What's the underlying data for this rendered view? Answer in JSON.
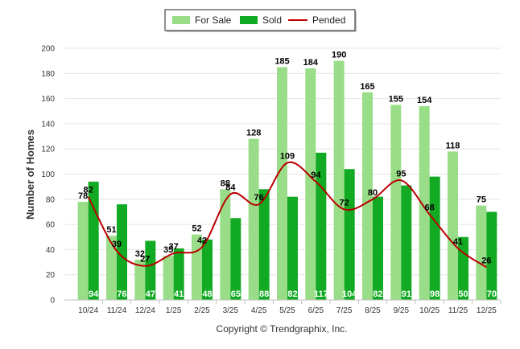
{
  "chart_data": {
    "type": "bar",
    "categories": [
      "10/24",
      "11/24",
      "12/24",
      "1/25",
      "2/25",
      "3/25",
      "4/25",
      "5/25",
      "6/25",
      "7/25",
      "8/25",
      "9/25",
      "10/25",
      "11/25",
      "12/25"
    ],
    "series": [
      {
        "name": "For Sale",
        "type": "bar",
        "color": "#99dd88",
        "values": [
          78,
          51,
          32,
          35,
          52,
          88,
          128,
          185,
          184,
          190,
          165,
          155,
          154,
          118,
          75
        ]
      },
      {
        "name": "Sold",
        "type": "bar",
        "color": "#11aa22",
        "values": [
          94,
          76,
          47,
          41,
          48,
          65,
          88,
          82,
          117,
          104,
          82,
          91,
          98,
          50,
          70
        ]
      },
      {
        "name": "Pended",
        "type": "line",
        "color": "#bb0000",
        "values": [
          82,
          39,
          27,
          37,
          42,
          84,
          76,
          109,
          94,
          72,
          80,
          95,
          68,
          41,
          26
        ]
      }
    ],
    "title": "",
    "ylabel": "Number of Homes",
    "ylim": [
      0,
      200
    ],
    "yticks": [
      0,
      20,
      40,
      60,
      80,
      100,
      120,
      140,
      160,
      180,
      200
    ],
    "legend": "top-center",
    "grid": true
  },
  "footer": {
    "copyright": "Copyright © Trendgraphix, Inc."
  }
}
